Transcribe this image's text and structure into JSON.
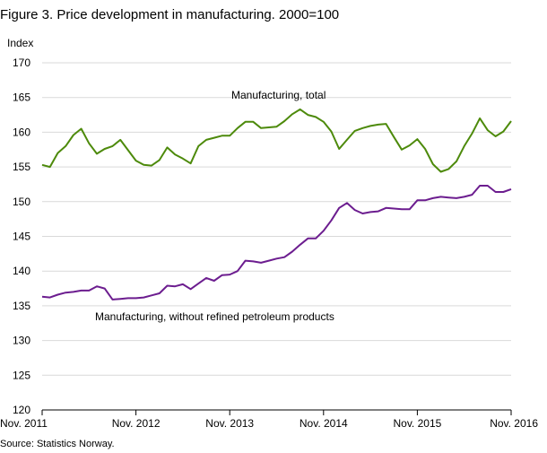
{
  "chart_data": {
    "type": "line",
    "title": "Figure 3. Price development in manufacturing. 2000=100",
    "ylabel": "Index",
    "ylim": [
      120,
      170
    ],
    "yticks": [
      120,
      125,
      130,
      135,
      140,
      145,
      150,
      155,
      160,
      165,
      170
    ],
    "xlim": [
      "2011-11",
      "2016-11"
    ],
    "xticks": [
      {
        "date": "2011-11",
        "label": "Nov. 2011"
      },
      {
        "date": "2012-11",
        "label": "Nov. 2012"
      },
      {
        "date": "2013-11",
        "label": "Nov. 2013"
      },
      {
        "date": "2014-11",
        "label": "Nov. 2014"
      },
      {
        "date": "2015-11",
        "label": "Nov. 2015"
      },
      {
        "date": "2016-11",
        "label": "Nov. 2016"
      }
    ],
    "grid": "horizontal",
    "x": [
      "2011-11",
      "2011-12",
      "2012-01",
      "2012-02",
      "2012-03",
      "2012-04",
      "2012-05",
      "2012-06",
      "2012-07",
      "2012-08",
      "2012-09",
      "2012-10",
      "2012-11",
      "2012-12",
      "2013-01",
      "2013-02",
      "2013-03",
      "2013-04",
      "2013-05",
      "2013-06",
      "2013-07",
      "2013-08",
      "2013-09",
      "2013-10",
      "2013-11",
      "2013-12",
      "2014-01",
      "2014-02",
      "2014-03",
      "2014-04",
      "2014-05",
      "2014-06",
      "2014-07",
      "2014-08",
      "2014-09",
      "2014-10",
      "2014-11",
      "2014-12",
      "2015-01",
      "2015-02",
      "2015-03",
      "2015-04",
      "2015-05",
      "2015-06",
      "2015-07",
      "2015-08",
      "2015-09",
      "2015-10",
      "2015-11",
      "2015-12",
      "2016-01",
      "2016-02",
      "2016-03",
      "2016-04",
      "2016-05",
      "2016-06",
      "2016-07",
      "2016-08",
      "2016-09",
      "2016-10",
      "2016-11"
    ],
    "series": [
      {
        "name": "Manufacturing, total",
        "color": "#4d8a0b",
        "values": [
          155.3,
          155.0,
          157.0,
          158.0,
          159.6,
          160.5,
          158.4,
          156.9,
          157.6,
          158.0,
          158.9,
          157.4,
          155.9,
          155.3,
          155.2,
          156.0,
          157.8,
          156.8,
          156.2,
          155.5,
          158.0,
          158.9,
          159.2,
          159.5,
          159.5,
          160.6,
          161.5,
          161.5,
          160.6,
          160.7,
          160.8,
          161.6,
          162.6,
          163.3,
          162.5,
          162.2,
          161.5,
          160.1,
          157.6,
          158.9,
          160.2,
          160.6,
          160.9,
          161.1,
          161.2,
          159.3,
          157.5,
          158.1,
          159.0,
          157.6,
          155.4,
          154.3,
          154.7,
          155.8,
          158.0,
          159.8,
          162.0,
          160.3,
          159.4,
          160.1,
          161.6
        ]
      },
      {
        "name": "Manufacturing, without refined petroleum products",
        "color": "#6c1d8f",
        "values": [
          136.3,
          136.2,
          136.6,
          136.9,
          137.0,
          137.2,
          137.2,
          137.8,
          137.5,
          135.9,
          136.0,
          136.1,
          136.1,
          136.2,
          136.5,
          136.8,
          137.9,
          137.8,
          138.1,
          137.4,
          138.2,
          139.0,
          138.6,
          139.4,
          139.5,
          140.0,
          141.5,
          141.4,
          141.2,
          141.5,
          141.8,
          142.0,
          142.8,
          143.8,
          144.7,
          144.7,
          145.8,
          147.3,
          149.1,
          149.8,
          148.8,
          148.3,
          148.5,
          148.6,
          149.1,
          149.0,
          148.9,
          148.9,
          150.2,
          150.2,
          150.5,
          150.7,
          150.6,
          150.5,
          150.7,
          151.0,
          152.3,
          152.3,
          151.4,
          151.4,
          151.8
        ]
      }
    ],
    "annotations": [
      {
        "text": "Manufacturing, total",
        "series": 0
      },
      {
        "text": "Manufacturing, without refined petroleum products",
        "series": 1
      }
    ]
  },
  "source": "Source: Statistics Norway."
}
